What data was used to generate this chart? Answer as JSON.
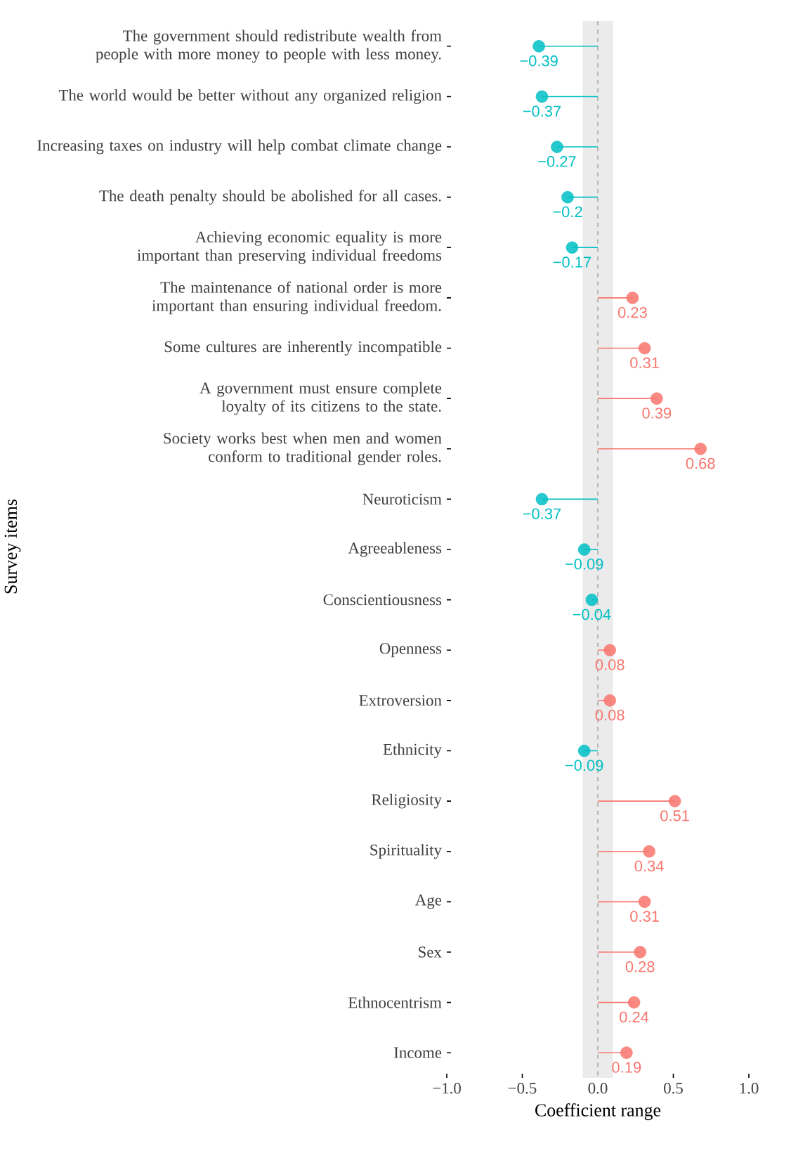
{
  "chart_data": {
    "type": "lollipop",
    "orientation": "horizontal",
    "xlabel": "Coefficient range",
    "ylabel": "Survey items",
    "categories": [
      "The government should redistribute wealth from people with more money to people with less money.",
      "The world would be better without any organized religion",
      "Increasing taxes on industry will help combat climate change",
      "The death penalty should be abolished for all cases.",
      "Achieving economic equality is more important than preserving individual freedoms",
      "The maintenance of national order is more important than ensuring individual freedom.",
      "Some cultures are inherently incompatible",
      "A government must ensure complete loyalty of its citizens to the state.",
      "Society works best when men and women conform to traditional gender roles.",
      "Neuroticism",
      "Agreeableness",
      "Conscientiousness",
      "Openness",
      "Extroversion",
      "Ethnicity",
      "Religiosity",
      "Spirituality",
      "Age",
      "Sex",
      "Ethnocentrism",
      "Income"
    ],
    "values": [
      -0.39,
      -0.37,
      -0.27,
      -0.2,
      -0.17,
      0.23,
      0.31,
      0.39,
      0.68,
      -0.37,
      -0.09,
      -0.04,
      0.08,
      0.08,
      -0.09,
      0.51,
      0.34,
      0.31,
      0.28,
      0.24,
      0.19
    ],
    "value_labels": [
      "−0.39",
      "−0.37",
      "−0.27",
      "−0.2",
      "−0.17",
      "0.23",
      "0.31",
      "0.39",
      "0.68",
      "−0.37",
      "−0.09",
      "−0.04",
      "0.08",
      "0.08",
      "−0.09",
      "0.51",
      "0.34",
      "0.31",
      "0.28",
      "0.24",
      "0.19"
    ],
    "colors": [
      "#00bfc4",
      "#00bfc4",
      "#00bfc4",
      "#00bfc4",
      "#00bfc4",
      "#f8766d",
      "#f8766d",
      "#f8766d",
      "#f8766d",
      "#00bfc4",
      "#00bfc4",
      "#00bfc4",
      "#f8766d",
      "#f8766d",
      "#00bfc4",
      "#f8766d",
      "#f8766d",
      "#f8766d",
      "#f8766d",
      "#f8766d",
      "#f8766d"
    ],
    "xlim": [
      -1,
      1
    ],
    "xticks": [
      {
        "value": -1,
        "label": "−1.0"
      },
      {
        "value": -0.5,
        "label": "−0.5"
      },
      {
        "value": 0,
        "label": "0.0"
      },
      {
        "value": 0.5,
        "label": "0.5"
      },
      {
        "value": 1,
        "label": "1.0"
      }
    ],
    "bands": [
      {
        "axis": "x",
        "from": -0.1,
        "to": 0.1,
        "color": "#ebebeb"
      }
    ],
    "ref_lines": [
      {
        "axis": "x",
        "value": 0,
        "color": "#aaaaaa",
        "line_style": "dashed"
      }
    ],
    "grid": false
  }
}
